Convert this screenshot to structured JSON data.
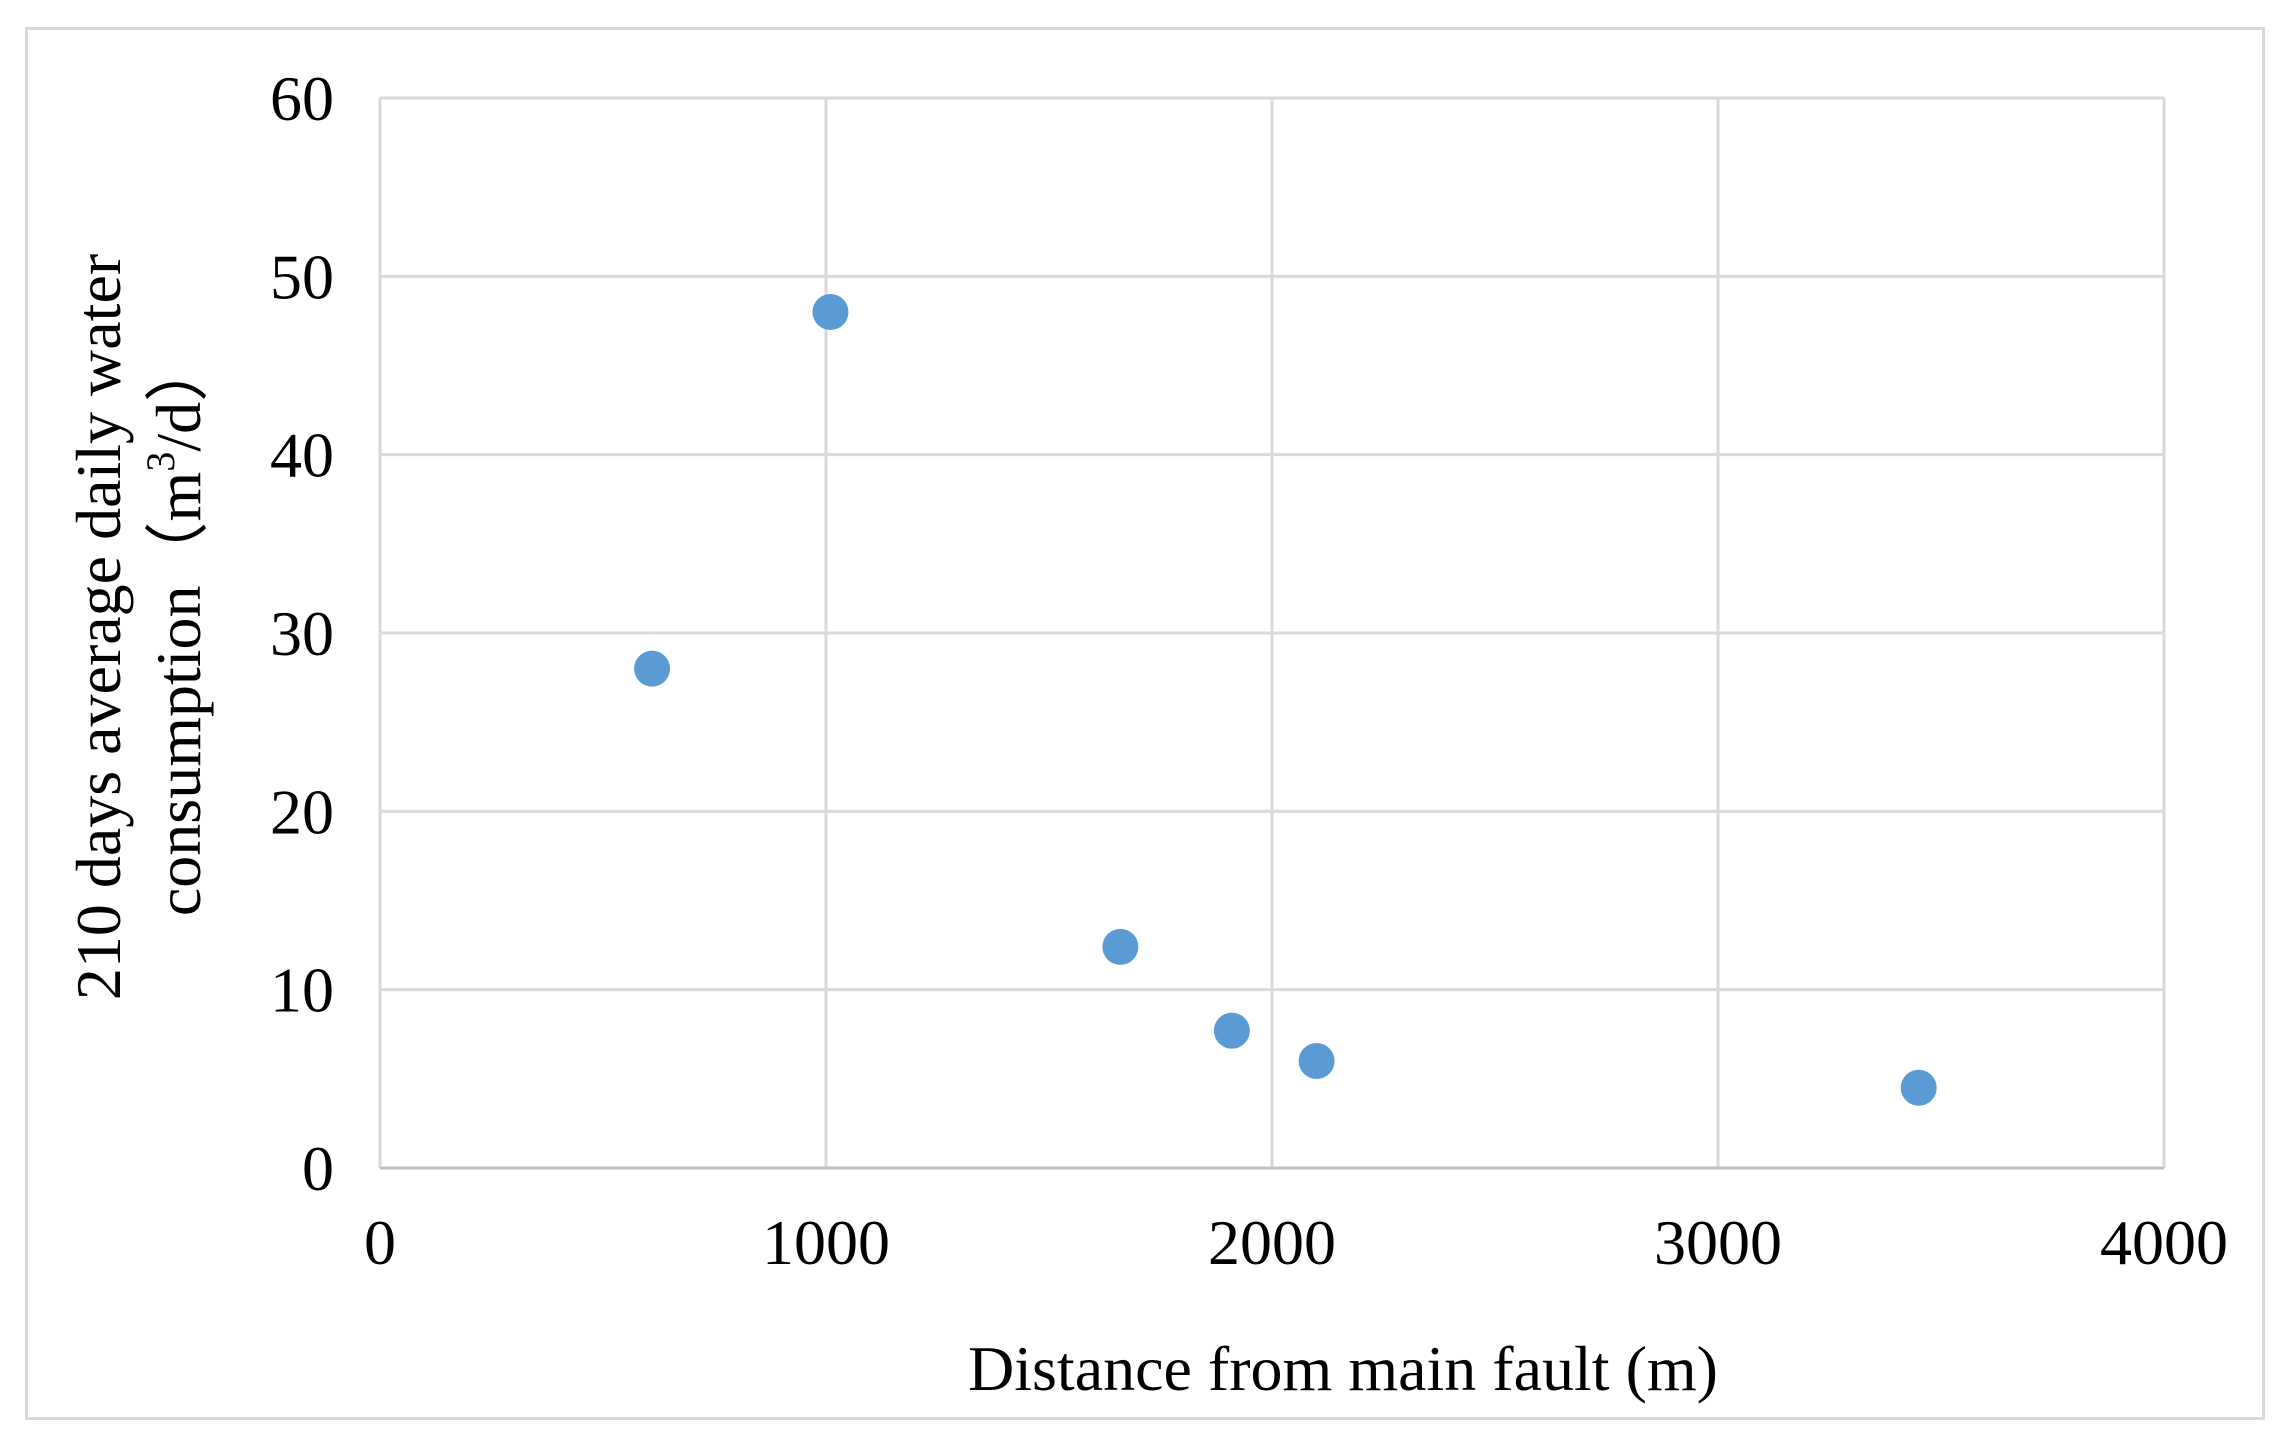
{
  "chart_data": {
    "type": "scatter",
    "title": "",
    "xlabel": "Distance from main fault (m)",
    "ylabel_line1": "210 days average daily water",
    "ylabel_line2": "consumption（m",
    "ylabel_sup": "3",
    "ylabel_tail": "/d）",
    "xlim": [
      0,
      4000
    ],
    "ylim": [
      0,
      60
    ],
    "x_ticks": [
      0,
      1000,
      2000,
      3000,
      4000
    ],
    "y_ticks": [
      0,
      10,
      20,
      30,
      40,
      50,
      60
    ],
    "grid": true,
    "legend": "none",
    "series": [
      {
        "color": "#5b9bd5",
        "points": [
          {
            "x": 610,
            "y": 28
          },
          {
            "x": 1010,
            "y": 48
          },
          {
            "x": 1660,
            "y": 12.4
          },
          {
            "x": 1910,
            "y": 7.7
          },
          {
            "x": 2100,
            "y": 6.0
          },
          {
            "x": 3450,
            "y": 4.5
          }
        ]
      }
    ]
  }
}
